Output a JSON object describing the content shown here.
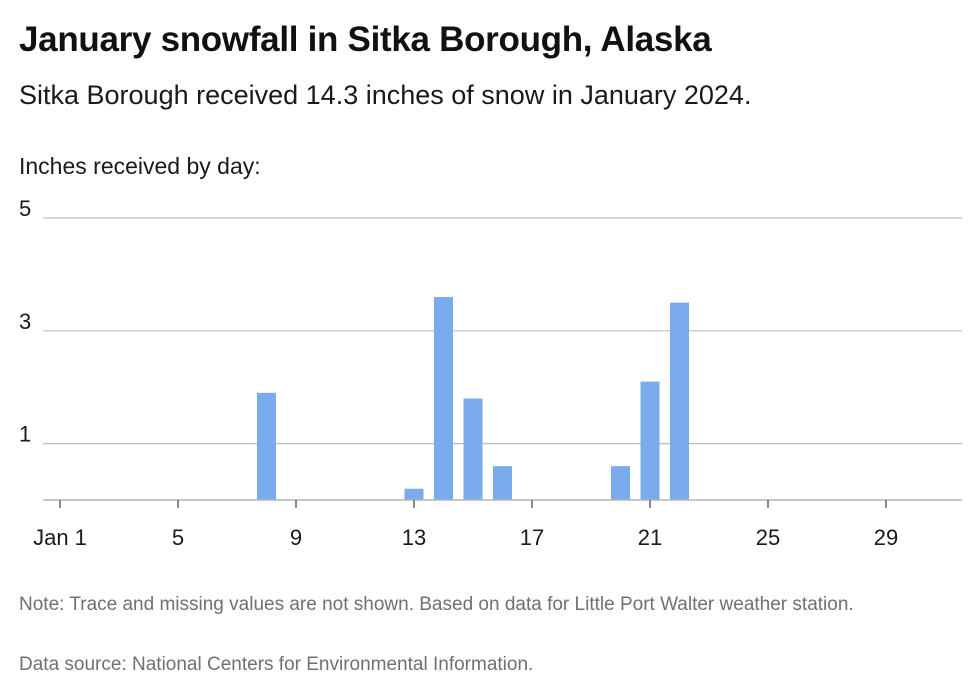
{
  "title": "January snowfall in Sitka Borough, Alaska",
  "subtitle": "Sitka Borough received 14.3 inches of snow in January 2024.",
  "note": "Note: Trace and missing values are not shown. Based on data for Little Port Walter weather station.",
  "source": "Data source: National Centers for Environmental Information.",
  "chart_data": {
    "type": "bar",
    "ylabel": "Inches received by day:",
    "bar_color": "#7aabec",
    "grid": true,
    "ylim": [
      0,
      5
    ],
    "y_ticks": [
      {
        "value": 5,
        "label": "5"
      },
      {
        "value": 3,
        "label": "3"
      },
      {
        "value": 1,
        "label": "1"
      }
    ],
    "x_domain": [
      1,
      31
    ],
    "x_ticks": [
      {
        "day": 1,
        "label": "Jan 1"
      },
      {
        "day": 5,
        "label": "5"
      },
      {
        "day": 9,
        "label": "9"
      },
      {
        "day": 13,
        "label": "13"
      },
      {
        "day": 17,
        "label": "17"
      },
      {
        "day": 21,
        "label": "21"
      },
      {
        "day": 25,
        "label": "25"
      },
      {
        "day": 29,
        "label": "29"
      }
    ],
    "points": [
      {
        "day": 8,
        "value": 1.9
      },
      {
        "day": 13,
        "value": 0.2
      },
      {
        "day": 14,
        "value": 3.6
      },
      {
        "day": 15,
        "value": 1.8
      },
      {
        "day": 16,
        "value": 0.6
      },
      {
        "day": 20,
        "value": 0.6
      },
      {
        "day": 21,
        "value": 2.1
      },
      {
        "day": 22,
        "value": 3.5
      }
    ]
  }
}
